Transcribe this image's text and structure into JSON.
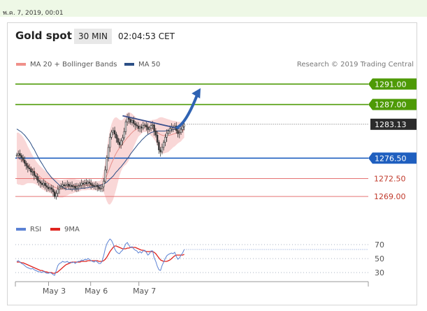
{
  "header": {
    "date_stamp": "พ.ค. 7, 2019, 00:01",
    "title": "Gold spot",
    "timeframe": "30 MIN",
    "time": "02:04:53 CET"
  },
  "colors": {
    "green_level": "#4e9a06",
    "blue_level": "#1f5fbf",
    "red_level": "#e57373",
    "band": "#f7c9c9",
    "ma": "#2c4f86",
    "candle": "#333333",
    "rsi": "#5b82d4",
    "rsi_ma": "#e0241f"
  },
  "chart_data": [
    {
      "type": "line",
      "title": "Gold spot",
      "credit": "Research © 2019 Trading Central",
      "legend": [
        {
          "name": "MA 20 + Bollinger Bands",
          "color": "#f0908a"
        },
        {
          "name": "MA 50",
          "color": "#2c4f86"
        }
      ],
      "x_ticks": [
        "May 3",
        "May 6",
        "May 7"
      ],
      "ylim": [
        1264.5,
        1293.5
      ],
      "levels": [
        {
          "label": "1291.00",
          "value": 1291.0,
          "kind": "resistance-green"
        },
        {
          "label": "1287.00",
          "value": 1287.0,
          "kind": "resistance-green"
        },
        {
          "label": "1283.13",
          "value": 1283.13,
          "kind": "current"
        },
        {
          "label": "1276.50",
          "value": 1276.5,
          "kind": "pivot-blue"
        },
        {
          "label": "1272.50",
          "value": 1272.5,
          "kind": "support-red"
        },
        {
          "label": "1269.00",
          "value": 1269.0,
          "kind": "support-red"
        }
      ],
      "price_close": [
        1277.1,
        1277.4,
        1277.0,
        1276.6,
        1276.1,
        1275.5,
        1275.0,
        1274.6,
        1274.4,
        1273.8,
        1273.9,
        1273.1,
        1272.9,
        1272.2,
        1271.9,
        1271.6,
        1271.3,
        1271.6,
        1271.1,
        1270.8,
        1270.5,
        1270.7,
        1270.4,
        1269.9,
        1269.0,
        1269.6,
        1270.4,
        1270.8,
        1271.0,
        1271.3,
        1271.1,
        1271.2,
        1271.4,
        1271.0,
        1271.2,
        1270.9,
        1271.0,
        1270.6,
        1270.9,
        1271.1,
        1271.2,
        1271.6,
        1271.4,
        1271.7,
        1271.5,
        1271.8,
        1271.6,
        1271.3,
        1271.1,
        1271.0,
        1271.2,
        1270.9,
        1270.5,
        1270.6,
        1270.9,
        1272.0,
        1274.2,
        1276.6,
        1278.6,
        1280.6,
        1281.6,
        1281.9,
        1281.2,
        1280.4,
        1279.6,
        1279.1,
        1279.9,
        1280.5,
        1281.7,
        1283.6,
        1284.6,
        1284.1,
        1283.5,
        1283.9,
        1283.3,
        1283.0,
        1282.8,
        1282.3,
        1282.6,
        1282.4,
        1282.9,
        1283.0,
        1282.6,
        1282.1,
        1282.4,
        1282.9,
        1283.0,
        1281.8,
        1281.0,
        1279.6,
        1278.1,
        1277.7,
        1278.6,
        1279.6,
        1280.6,
        1281.4,
        1281.8,
        1282.3,
        1282.6,
        1282.5,
        1282.8,
        1281.9,
        1281.3,
        1281.5,
        1282.1,
        1282.7,
        1283.13
      ],
      "ma20": [
        1276.5,
        1276.4,
        1276.3,
        1276.1,
        1275.9,
        1275.7,
        1275.5,
        1275.2,
        1274.9,
        1274.6,
        1274.3,
        1274.0,
        1273.7,
        1273.4,
        1273.1,
        1272.8,
        1272.5,
        1272.3,
        1272.0,
        1271.8,
        1271.6,
        1271.4,
        1271.2,
        1271.0,
        1270.8,
        1270.7,
        1270.6,
        1270.5,
        1270.5,
        1270.5,
        1270.6,
        1270.7,
        1270.8,
        1270.9,
        1271.0,
        1271.0,
        1271.1,
        1271.1,
        1271.1,
        1271.1,
        1271.1,
        1271.2,
        1271.2,
        1271.2,
        1271.2,
        1271.2,
        1271.2,
        1271.2,
        1271.1,
        1271.1,
        1271.1,
        1271.1,
        1271.1,
        1271.2,
        1271.4,
        1271.8,
        1272.4,
        1273.1,
        1273.9,
        1274.7,
        1275.5,
        1276.2,
        1276.9,
        1277.5,
        1278.0,
        1278.5,
        1278.9,
        1279.3,
        1279.7,
        1280.1,
        1280.5,
        1280.8,
        1281.2,
        1281.5,
        1281.8,
        1282.0,
        1282.2,
        1282.4,
        1282.5,
        1282.6,
        1282.7,
        1282.7,
        1282.7,
        1282.6,
        1282.5,
        1282.4,
        1282.3,
        1282.1,
        1281.9,
        1281.6,
        1281.3,
        1281.1,
        1281.0,
        1280.9,
        1280.9,
        1280.9,
        1280.9,
        1281.0,
        1281.1,
        1281.2,
        1281.3,
        1281.4,
        1281.5,
        1281.6,
        1281.7,
        1281.9,
        1282.1
      ],
      "bb_upper": [
        1281.5,
        1281.5,
        1281.3,
        1281.0,
        1280.6,
        1280.1,
        1279.5,
        1278.8,
        1278.2,
        1277.6,
        1277.0,
        1276.5,
        1276.0,
        1275.6,
        1275.2,
        1274.9,
        1274.6,
        1274.3,
        1274.0,
        1273.7,
        1273.4,
        1273.1,
        1272.9,
        1272.7,
        1272.5,
        1272.4,
        1272.3,
        1272.2,
        1272.2,
        1272.2,
        1272.3,
        1272.3,
        1272.4,
        1272.4,
        1272.5,
        1272.5,
        1272.5,
        1272.4,
        1272.3,
        1272.3,
        1272.2,
        1272.2,
        1272.2,
        1272.2,
        1272.2,
        1272.1,
        1272.1,
        1272.1,
        1272.0,
        1272.0,
        1272.0,
        1272.0,
        1272.0,
        1272.1,
        1272.6,
        1273.8,
        1275.8,
        1278.1,
        1280.3,
        1282.0,
        1283.2,
        1284.0,
        1284.4,
        1284.5,
        1284.3,
        1284.0,
        1283.9,
        1284.0,
        1284.4,
        1285.0,
        1285.4,
        1285.5,
        1285.4,
        1285.2,
        1284.9,
        1284.6,
        1284.3,
        1284.1,
        1284.0,
        1283.9,
        1283.8,
        1283.8,
        1283.8,
        1283.8,
        1283.8,
        1283.9,
        1284.0,
        1284.0,
        1284.1,
        1284.2,
        1284.4,
        1284.5,
        1284.5,
        1284.4,
        1284.3,
        1284.2,
        1284.1,
        1284.0,
        1283.9,
        1283.8,
        1283.8,
        1283.7,
        1283.6,
        1283.6,
        1283.6,
        1283.6,
        1283.7
      ],
      "bb_lower": [
        1271.5,
        1271.3,
        1271.3,
        1271.2,
        1271.2,
        1271.3,
        1271.5,
        1271.6,
        1271.6,
        1271.6,
        1271.6,
        1271.5,
        1271.4,
        1271.2,
        1271.0,
        1270.7,
        1270.4,
        1270.3,
        1270.0,
        1269.9,
        1269.8,
        1269.7,
        1269.5,
        1269.3,
        1269.1,
        1269.0,
        1268.9,
        1268.8,
        1268.8,
        1268.8,
        1268.9,
        1269.1,
        1269.2,
        1269.4,
        1269.5,
        1269.5,
        1269.7,
        1269.8,
        1269.9,
        1269.9,
        1270.0,
        1270.2,
        1270.2,
        1270.2,
        1270.2,
        1270.3,
        1270.3,
        1270.3,
        1270.2,
        1270.2,
        1270.2,
        1270.2,
        1270.2,
        1270.3,
        1270.2,
        1269.8,
        1269.0,
        1268.1,
        1267.5,
        1267.4,
        1267.8,
        1268.4,
        1269.4,
        1270.5,
        1271.7,
        1273.0,
        1273.9,
        1274.6,
        1275.0,
        1275.2,
        1275.6,
        1276.1,
        1277.0,
        1277.8,
        1278.7,
        1279.4,
        1280.1,
        1280.7,
        1281.0,
        1281.3,
        1281.6,
        1281.6,
        1281.6,
        1281.4,
        1281.2,
        1280.9,
        1280.6,
        1280.2,
        1279.7,
        1279.0,
        1278.2,
        1277.7,
        1277.5,
        1277.4,
        1277.5,
        1277.6,
        1277.7,
        1278.0,
        1278.3,
        1278.6,
        1278.8,
        1279.1,
        1279.4,
        1279.6,
        1279.8,
        1280.2,
        1280.5
      ],
      "ma50": [
        1282.2,
        1282.0,
        1281.8,
        1281.6,
        1281.3,
        1281.0,
        1280.6,
        1280.2,
        1279.8,
        1279.3,
        1278.7,
        1278.2,
        1277.6,
        1277.0,
        1276.4,
        1275.9,
        1275.4,
        1274.9,
        1274.4,
        1273.9,
        1273.5,
        1273.1,
        1272.7,
        1272.4,
        1272.1,
        1271.8,
        1271.5,
        1271.2,
        1271.0,
        1270.8,
        1270.6,
        1270.5,
        1270.4,
        1270.4,
        1270.4,
        1270.4,
        1270.4,
        1270.4,
        1270.4,
        1270.5,
        1270.5,
        1270.6,
        1270.6,
        1270.6,
        1270.7,
        1270.7,
        1270.8,
        1270.8,
        1270.9,
        1270.9,
        1271.0,
        1271.0,
        1271.1,
        1271.2,
        1271.3,
        1271.4,
        1271.6,
        1271.8,
        1272.1,
        1272.4,
        1272.7,
        1273.0,
        1273.4,
        1273.8,
        1274.1,
        1274.5,
        1274.8,
        1275.2,
        1275.6,
        1276.0,
        1276.4,
        1276.8,
        1277.3,
        1277.7,
        1278.1,
        1278.5,
        1278.9,
        1279.3,
        1279.6,
        1280.0,
        1280.3,
        1280.6,
        1280.9,
        1281.1,
        1281.3,
        1281.5,
        1281.6,
        1281.7,
        1281.8,
        1281.8,
        1281.8,
        1281.8,
        1281.8,
        1281.8,
        1281.8,
        1281.9,
        1281.9,
        1282.0,
        1282.0,
        1282.1,
        1282.1,
        1282.2,
        1282.2,
        1282.3,
        1282.3,
        1282.4,
        1282.5
      ],
      "trendline": {
        "from": [
          67,
          1284.8
        ],
        "to": [
          101,
          1282.4
        ]
      },
      "forecast_arrow": {
        "from": [
          101,
          1282.4
        ],
        "to": [
          115,
          1289.5
        ]
      }
    },
    {
      "type": "line",
      "title": "RSI",
      "legend": [
        {
          "name": "RSI",
          "color": "#5b82d4"
        },
        {
          "name": "9MA",
          "color": "#e0241f"
        }
      ],
      "ylim": [
        20,
        80
      ],
      "y_ticks": [
        "70",
        "50",
        "30"
      ],
      "rsi": [
        46,
        47,
        45,
        43,
        42,
        40,
        38,
        37,
        36,
        35,
        36,
        34,
        33,
        32,
        31,
        31,
        30,
        32,
        30,
        29,
        29,
        30,
        29,
        27,
        26,
        33,
        40,
        43,
        44,
        46,
        45,
        45,
        46,
        44,
        45,
        44,
        45,
        43,
        45,
        46,
        46,
        48,
        47,
        49,
        48,
        50,
        49,
        47,
        46,
        45,
        47,
        45,
        43,
        43,
        46,
        54,
        64,
        71,
        75,
        78,
        76,
        71,
        64,
        60,
        58,
        57,
        60,
        62,
        66,
        71,
        73,
        69,
        66,
        67,
        64,
        62,
        61,
        58,
        60,
        58,
        61,
        62,
        59,
        55,
        57,
        61,
        61,
        51,
        46,
        39,
        34,
        33,
        40,
        45,
        50,
        54,
        56,
        57,
        58,
        57,
        59,
        53,
        49,
        51,
        55,
        58,
        63
      ],
      "ma9": [
        45,
        45,
        45,
        44,
        44,
        43,
        42,
        41,
        40,
        39,
        38,
        37,
        36,
        35,
        34,
        33,
        33,
        32,
        31,
        31,
        30,
        30,
        30,
        29,
        29,
        30,
        31,
        33,
        35,
        37,
        39,
        41,
        42,
        43,
        44,
        45,
        45,
        45,
        45,
        45,
        45,
        46,
        46,
        46,
        46,
        47,
        47,
        47,
        47,
        47,
        47,
        47,
        46,
        46,
        46,
        47,
        49,
        52,
        56,
        60,
        63,
        66,
        68,
        68,
        67,
        66,
        65,
        64,
        64,
        64,
        65,
        65,
        66,
        66,
        66,
        66,
        65,
        64,
        63,
        62,
        62,
        61,
        60,
        60,
        60,
        60,
        60,
        59,
        57,
        54,
        51,
        48,
        47,
        46,
        46,
        46,
        47,
        48,
        50,
        52,
        54,
        55,
        55,
        55,
        55,
        55,
        56
      ]
    }
  ]
}
